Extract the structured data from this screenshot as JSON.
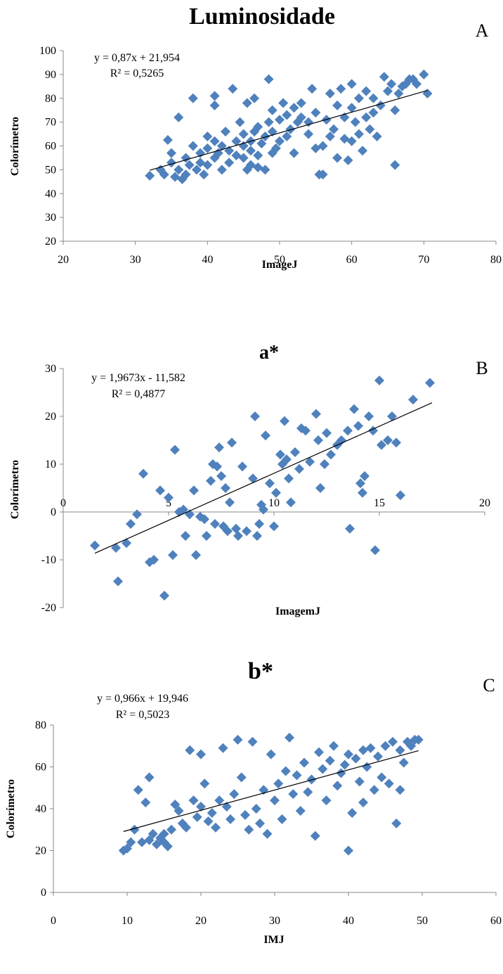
{
  "chart_data": [
    {
      "panel": "A",
      "type": "scatter",
      "title": "Luminosidade",
      "xlabel": "ImageJ",
      "ylabel": "Colorímetro",
      "xlim": [
        20,
        80
      ],
      "ylim": [
        20,
        100
      ],
      "xticks": [
        "20",
        "30",
        "40",
        "50",
        "60",
        "70",
        "80"
      ],
      "yticks": [
        "20",
        "30",
        "40",
        "50",
        "60",
        "70",
        "80",
        "90",
        "100"
      ],
      "equation": "y = 0,87x + 21,954",
      "r2": "R² = 0,5265",
      "trendline": {
        "slope": 0.87,
        "intercept": 21.954,
        "x_range": [
          32,
          70.5
        ]
      },
      "marker_color": "#4f81bd",
      "grid": false,
      "points": [
        [
          32,
          47.5
        ],
        [
          33.5,
          50
        ],
        [
          34,
          48
        ],
        [
          34.5,
          62.5
        ],
        [
          35,
          57
        ],
        [
          35,
          53
        ],
        [
          35.5,
          47
        ],
        [
          36,
          72
        ],
        [
          36,
          50
        ],
        [
          36.5,
          46
        ],
        [
          37,
          48
        ],
        [
          37,
          55
        ],
        [
          37.5,
          52
        ],
        [
          38,
          80
        ],
        [
          38,
          60
        ],
        [
          38.5,
          50
        ],
        [
          39,
          53
        ],
        [
          39,
          57
        ],
        [
          39.5,
          48
        ],
        [
          40,
          64
        ],
        [
          40,
          59
        ],
        [
          40,
          52
        ],
        [
          41,
          81
        ],
        [
          41,
          77
        ],
        [
          41,
          62
        ],
        [
          41,
          55
        ],
        [
          41.5,
          57
        ],
        [
          42,
          50
        ],
        [
          42,
          60
        ],
        [
          42.5,
          66
        ],
        [
          43,
          53
        ],
        [
          43,
          58
        ],
        [
          43.5,
          84
        ],
        [
          44,
          56
        ],
        [
          44,
          62
        ],
        [
          44.5,
          70
        ],
        [
          45,
          55
        ],
        [
          45,
          60
        ],
        [
          45,
          65
        ],
        [
          45.5,
          78
        ],
        [
          45.5,
          50
        ],
        [
          46,
          52
        ],
        [
          46,
          58
        ],
        [
          46,
          62
        ],
        [
          46.5,
          66
        ],
        [
          46.5,
          80
        ],
        [
          47,
          51
        ],
        [
          47,
          56
        ],
        [
          47,
          68
        ],
        [
          47.5,
          61
        ],
        [
          48,
          64
        ],
        [
          48,
          50
        ],
        [
          48.5,
          88
        ],
        [
          48.5,
          70
        ],
        [
          49,
          57
        ],
        [
          49,
          66
        ],
        [
          49,
          75
        ],
        [
          49.5,
          59
        ],
        [
          50,
          62
        ],
        [
          50,
          71
        ],
        [
          50.5,
          78
        ],
        [
          51,
          64
        ],
        [
          51,
          73
        ],
        [
          51.5,
          67
        ],
        [
          52,
          57
        ],
        [
          52,
          76
        ],
        [
          52.5,
          70
        ],
        [
          53,
          72
        ],
        [
          53,
          78
        ],
        [
          54,
          65
        ],
        [
          54,
          70
        ],
        [
          54.5,
          84
        ],
        [
          55,
          74
        ],
        [
          55,
          59
        ],
        [
          55.5,
          48
        ],
        [
          56,
          48
        ],
        [
          56,
          60
        ],
        [
          56.5,
          71
        ],
        [
          57,
          82
        ],
        [
          57,
          64
        ],
        [
          57.5,
          67
        ],
        [
          58,
          55
        ],
        [
          58,
          77
        ],
        [
          58.5,
          84
        ],
        [
          59,
          63
        ],
        [
          59,
          72
        ],
        [
          59.5,
          54
        ],
        [
          60,
          62
        ],
        [
          60,
          76
        ],
        [
          60,
          86
        ],
        [
          60.5,
          70
        ],
        [
          61,
          65
        ],
        [
          61,
          80
        ],
        [
          61.5,
          58
        ],
        [
          62,
          72
        ],
        [
          62,
          83
        ],
        [
          62.5,
          67
        ],
        [
          63,
          74
        ],
        [
          63,
          80
        ],
        [
          63.5,
          64
        ],
        [
          64,
          77
        ],
        [
          64.5,
          89
        ],
        [
          65,
          83
        ],
        [
          65.5,
          86
        ],
        [
          66,
          52
        ],
        [
          66,
          75
        ],
        [
          66.5,
          82
        ],
        [
          67,
          85
        ],
        [
          67.5,
          86
        ],
        [
          68,
          88
        ],
        [
          68.5,
          88
        ],
        [
          69,
          86
        ],
        [
          70,
          90
        ],
        [
          70.5,
          82
        ]
      ]
    },
    {
      "panel": "B",
      "type": "scatter",
      "title": "a*",
      "xlabel": "ImagemJ",
      "ylabel": "Colorímetro",
      "xlim": [
        0,
        20
      ],
      "ylim": [
        -20,
        30
      ],
      "xticks": [
        "0",
        "5",
        "10",
        "15",
        "20"
      ],
      "yticks": [
        "-20",
        "-10",
        "0",
        "10",
        "20",
        "30"
      ],
      "equation": "y = 1,9673x - 11,582",
      "r2": "R² = 0,4877",
      "trendline": {
        "slope": 1.9673,
        "intercept": -11.582,
        "x_range": [
          1.5,
          17.5
        ]
      },
      "marker_color": "#4f81bd",
      "grid": false,
      "points": [
        [
          1.5,
          -7
        ],
        [
          2.5,
          -7.5
        ],
        [
          2.6,
          -14.5
        ],
        [
          3,
          -6.5
        ],
        [
          3.2,
          -2.5
        ],
        [
          3.5,
          -0.5
        ],
        [
          3.8,
          8
        ],
        [
          4.1,
          -10.5
        ],
        [
          4.3,
          -10
        ],
        [
          4.6,
          4.5
        ],
        [
          4.8,
          -17.5
        ],
        [
          5,
          3
        ],
        [
          5.2,
          -9
        ],
        [
          5.3,
          13
        ],
        [
          5.5,
          0
        ],
        [
          5.7,
          0.5
        ],
        [
          5.8,
          -5
        ],
        [
          6,
          -0.5
        ],
        [
          6.2,
          4.5
        ],
        [
          6.3,
          -9
        ],
        [
          6.5,
          -1
        ],
        [
          6.7,
          -1.5
        ],
        [
          6.8,
          -5
        ],
        [
          7,
          6.5
        ],
        [
          7.1,
          10
        ],
        [
          7.2,
          -2.5
        ],
        [
          7.3,
          9.5
        ],
        [
          7.4,
          13.5
        ],
        [
          7.5,
          7.5
        ],
        [
          7.6,
          -3
        ],
        [
          7.7,
          5
        ],
        [
          7.8,
          -4
        ],
        [
          7.9,
          2
        ],
        [
          8,
          14.5
        ],
        [
          8.2,
          -3.5
        ],
        [
          8.3,
          -5
        ],
        [
          8.5,
          9.5
        ],
        [
          8.7,
          -4
        ],
        [
          9,
          7
        ],
        [
          9.1,
          20
        ],
        [
          9.2,
          -5
        ],
        [
          9.3,
          -2.5
        ],
        [
          9.4,
          1.5
        ],
        [
          9.5,
          0.5
        ],
        [
          9.6,
          16
        ],
        [
          9.8,
          6
        ],
        [
          10,
          -3
        ],
        [
          10.1,
          4
        ],
        [
          10.3,
          12
        ],
        [
          10.4,
          10
        ],
        [
          10.5,
          19
        ],
        [
          10.6,
          11
        ],
        [
          10.7,
          7
        ],
        [
          10.8,
          2
        ],
        [
          11,
          12.5
        ],
        [
          11.2,
          9
        ],
        [
          11.3,
          17.5
        ],
        [
          11.5,
          17
        ],
        [
          11.7,
          10.5
        ],
        [
          12,
          20.5
        ],
        [
          12.1,
          15
        ],
        [
          12.2,
          5
        ],
        [
          12.4,
          10
        ],
        [
          12.5,
          16.5
        ],
        [
          12.7,
          12
        ],
        [
          13,
          14
        ],
        [
          13.2,
          15
        ],
        [
          13.5,
          17
        ],
        [
          13.6,
          -3.5
        ],
        [
          13.8,
          21.5
        ],
        [
          14,
          18
        ],
        [
          14.1,
          6
        ],
        [
          14.2,
          4
        ],
        [
          14.3,
          7.5
        ],
        [
          14.5,
          20
        ],
        [
          14.7,
          17
        ],
        [
          14.8,
          -8
        ],
        [
          15,
          27.5
        ],
        [
          15.1,
          14
        ],
        [
          15.4,
          15
        ],
        [
          15.6,
          20
        ],
        [
          15.8,
          14.5
        ],
        [
          16,
          3.5
        ],
        [
          16.6,
          23.5
        ],
        [
          17.4,
          27
        ]
      ]
    },
    {
      "panel": "C",
      "type": "scatter",
      "title": "b*",
      "xlabel": "IMJ",
      "ylabel": "Colorímetro",
      "xlim": [
        0,
        60
      ],
      "ylim": [
        0,
        80
      ],
      "xticks": [
        "0",
        "10",
        "20",
        "30",
        "40",
        "50",
        "60"
      ],
      "yticks": [
        "0",
        "20",
        "40",
        "60",
        "80"
      ],
      "equation": "y = 0,966x + 19,946",
      "r2": "R² = 0,5023",
      "trendline": {
        "slope": 0.966,
        "intercept": 19.946,
        "x_range": [
          9.5,
          49.5
        ]
      },
      "marker_color": "#4f81bd",
      "grid": false,
      "points": [
        [
          9.5,
          20
        ],
        [
          10,
          21
        ],
        [
          10.5,
          24
        ],
        [
          11,
          30
        ],
        [
          11.5,
          49
        ],
        [
          12,
          24
        ],
        [
          12.5,
          43
        ],
        [
          13,
          55
        ],
        [
          13,
          25
        ],
        [
          13.5,
          28
        ],
        [
          14,
          23
        ],
        [
          14.5,
          26
        ],
        [
          15,
          24
        ],
        [
          15,
          28
        ],
        [
          15.5,
          22
        ],
        [
          16,
          30
        ],
        [
          16.5,
          42
        ],
        [
          17,
          39
        ],
        [
          17.5,
          33
        ],
        [
          18,
          31
        ],
        [
          18.5,
          68
        ],
        [
          19,
          44
        ],
        [
          19.5,
          36
        ],
        [
          20,
          41
        ],
        [
          20,
          66
        ],
        [
          20.5,
          52
        ],
        [
          21,
          34
        ],
        [
          21.5,
          38
        ],
        [
          22,
          31
        ],
        [
          22.5,
          44
        ],
        [
          23,
          69
        ],
        [
          23.5,
          41
        ],
        [
          24,
          35
        ],
        [
          24.5,
          47
        ],
        [
          25,
          73
        ],
        [
          25.5,
          55
        ],
        [
          26,
          37
        ],
        [
          26.5,
          30
        ],
        [
          27,
          72
        ],
        [
          27.5,
          40
        ],
        [
          28,
          33
        ],
        [
          28.5,
          49
        ],
        [
          29,
          28
        ],
        [
          29.5,
          66
        ],
        [
          30,
          44
        ],
        [
          30.5,
          52
        ],
        [
          31,
          35
        ],
        [
          31.5,
          58
        ],
        [
          32,
          74
        ],
        [
          32.5,
          47
        ],
        [
          33,
          56
        ],
        [
          33.5,
          39
        ],
        [
          34,
          62
        ],
        [
          34.5,
          48
        ],
        [
          35,
          54
        ],
        [
          35.5,
          27
        ],
        [
          36,
          67
        ],
        [
          36.5,
          59
        ],
        [
          37,
          44
        ],
        [
          37.5,
          63
        ],
        [
          38,
          70
        ],
        [
          38.5,
          51
        ],
        [
          39,
          57
        ],
        [
          39.5,
          61
        ],
        [
          40,
          66
        ],
        [
          40,
          20
        ],
        [
          40.5,
          38
        ],
        [
          41,
          64
        ],
        [
          41.5,
          53
        ],
        [
          42,
          68
        ],
        [
          42,
          43
        ],
        [
          42.5,
          60
        ],
        [
          43,
          69
        ],
        [
          43.5,
          49
        ],
        [
          44,
          65
        ],
        [
          44.5,
          55
        ],
        [
          45,
          70
        ],
        [
          45.5,
          52
        ],
        [
          46,
          72
        ],
        [
          46.5,
          33
        ],
        [
          47,
          68
        ],
        [
          47,
          49
        ],
        [
          47.5,
          62
        ],
        [
          48,
          72
        ],
        [
          48.5,
          70
        ],
        [
          49,
          73
        ],
        [
          49.5,
          73
        ]
      ]
    }
  ]
}
